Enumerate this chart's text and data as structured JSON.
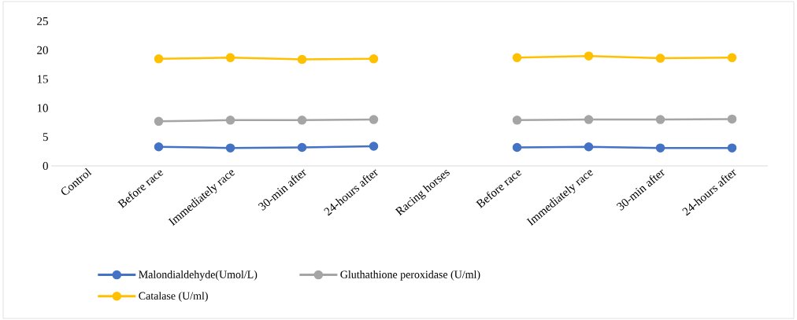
{
  "chart_data": {
    "type": "line",
    "categories": [
      "Control",
      "Before race",
      "Immediately race",
      "30-min after",
      "24-hours after",
      "Racing horses",
      "Before race",
      "Immediately race",
      "30-min after",
      "24-hours after"
    ],
    "series": [
      {
        "name": "Malondialdehyde(Umol/L)",
        "color": "#4472c4",
        "values": [
          null,
          3.3,
          3.1,
          3.2,
          3.4,
          null,
          3.2,
          3.3,
          3.1,
          3.1
        ]
      },
      {
        "name": "Gluthathione peroxidase (U/ml)",
        "color": "#a5a5a5",
        "values": [
          null,
          7.7,
          7.9,
          7.9,
          8.0,
          null,
          7.9,
          8.0,
          8.0,
          8.1
        ]
      },
      {
        "name": "Catalase (U/ml)",
        "color": "#ffc000",
        "values": [
          null,
          18.5,
          18.7,
          18.4,
          18.5,
          null,
          18.7,
          19.0,
          18.6,
          18.7
        ]
      }
    ],
    "ylim": [
      0,
      25
    ],
    "yticks": [
      0,
      5,
      10,
      15,
      20,
      25
    ],
    "grid": false,
    "legend": "bottom",
    "marker": "circle",
    "line_style": "solid"
  }
}
